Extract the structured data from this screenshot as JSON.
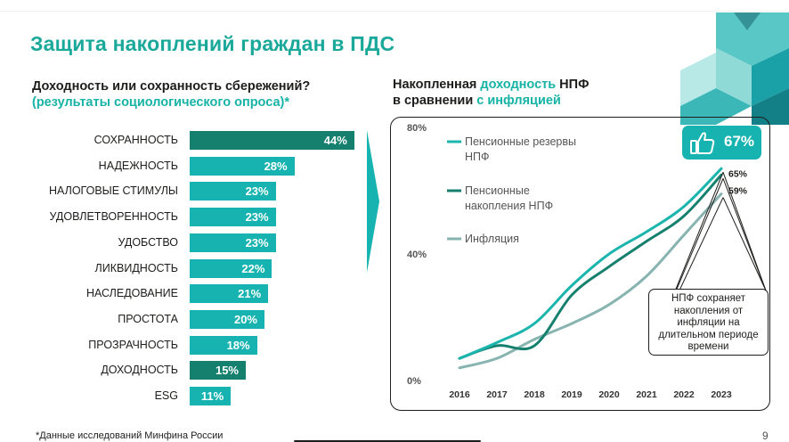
{
  "title": "Защита накоплений граждан в ПДС",
  "left_heading": {
    "line1": "Доходность или сохранность сбережений?",
    "line2": "(результаты социологического опроса)*"
  },
  "right_heading": {
    "p1": "Накопленная ",
    "p2": "доходность",
    "p3": " НПФ",
    "p4": "в сравнении ",
    "p5": "с инфляцией"
  },
  "badge": {
    "value": "67%",
    "icon": "thumbs-up-icon"
  },
  "callout": "НПФ сохраняет накопления от инфляции на длительном периоде времени",
  "footnote": "*Данные исследований Минфина России",
  "page_number": "9",
  "colors": {
    "accent": "#17b3a6",
    "bar": "#17b3b0",
    "bar_dark": "#16806f",
    "reserves": "#1bb5ae",
    "savings": "#16806f",
    "inflation": "#87b4b0"
  },
  "chart_data": [
    {
      "type": "bar",
      "orientation": "horizontal",
      "categories": [
        "СОХРАННОСТЬ",
        "НАДЕЖНОСТЬ",
        "НАЛОГОВЫЕ СТИМУЛЫ",
        "УДОВЛЕТВОРЕННОСТЬ",
        "УДОБСТВО",
        "ЛИКВИДНОСТЬ",
        "НАСЛЕДОВАНИЕ",
        "ПРОСТОТА",
        "ПРОЗРАЧНОСТЬ",
        "ДОХОДНОСТЬ",
        "ESG"
      ],
      "values": [
        44,
        28,
        23,
        23,
        23,
        22,
        21,
        20,
        18,
        15,
        11
      ],
      "value_labels": [
        "44%",
        "28%",
        "23%",
        "23%",
        "23%",
        "22%",
        "21%",
        "20%",
        "18%",
        "15%",
        "11%"
      ],
      "highlighted": [
        true,
        false,
        false,
        false,
        false,
        false,
        false,
        false,
        false,
        true,
        false
      ]
    },
    {
      "type": "line",
      "x": [
        "2016",
        "2017",
        "2018",
        "2019",
        "2020",
        "2021",
        "2022",
        "2023"
      ],
      "ylim": [
        0,
        80
      ],
      "yticks": [
        "0%",
        "40%",
        "80%"
      ],
      "series": [
        {
          "name": "Пенсионные резервы НПФ",
          "values": [
            7,
            12,
            18,
            30,
            40,
            47,
            55,
            67
          ],
          "end_label": "67%"
        },
        {
          "name": "Пенсионные накопления НПФ",
          "values": [
            7,
            11,
            11,
            27,
            36,
            44,
            52,
            65
          ],
          "end_label": "65%"
        },
        {
          "name": "Инфляция",
          "values": [
            4,
            7,
            13,
            18,
            24,
            33,
            46,
            59
          ],
          "end_label": "59%"
        }
      ]
    }
  ]
}
